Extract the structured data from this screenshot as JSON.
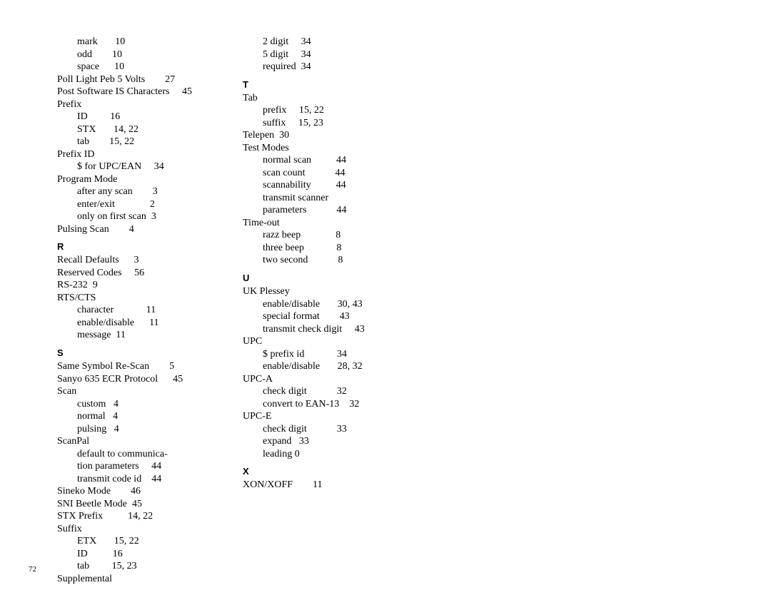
{
  "pageNumber": "72",
  "col1": [
    {
      "t": "line",
      "text": "        mark       10"
    },
    {
      "t": "line",
      "text": "        odd        10"
    },
    {
      "t": "line",
      "text": "        space      10"
    },
    {
      "t": "line",
      "text": "Poll Light Peb 5 Volts        27"
    },
    {
      "t": "line",
      "text": "Post Software IS Characters     45"
    },
    {
      "t": "line",
      "text": "Prefix"
    },
    {
      "t": "line",
      "text": "        ID         16"
    },
    {
      "t": "line",
      "text": "        STX       14, 22"
    },
    {
      "t": "line",
      "text": "        tab        15, 22"
    },
    {
      "t": "line",
      "text": "Prefix ID"
    },
    {
      "t": "line",
      "text": "        $ for UPC/EAN     34"
    },
    {
      "t": "line",
      "text": "Program Mode"
    },
    {
      "t": "line",
      "text": "        after any scan        3"
    },
    {
      "t": "line",
      "text": "        enter/exit              2"
    },
    {
      "t": "line",
      "text": "        only on first scan  3"
    },
    {
      "t": "line",
      "text": "Pulsing Scan        4"
    },
    {
      "t": "heading",
      "text": "R"
    },
    {
      "t": "line",
      "text": "Recall Defaults      3"
    },
    {
      "t": "line",
      "text": "Reserved Codes     56"
    },
    {
      "t": "line",
      "text": "RS-232  9"
    },
    {
      "t": "line",
      "text": "RTS/CTS"
    },
    {
      "t": "line",
      "text": "        character             11"
    },
    {
      "t": "line",
      "text": "        enable/disable      11"
    },
    {
      "t": "line",
      "text": "        message  11"
    },
    {
      "t": "heading",
      "text": "S"
    },
    {
      "t": "line",
      "text": "Same Symbol Re-Scan        5"
    },
    {
      "t": "line",
      "text": "Sanyo 635 ECR Protocol      45"
    },
    {
      "t": "line",
      "text": "Scan"
    },
    {
      "t": "line",
      "text": "        custom   4"
    },
    {
      "t": "line",
      "text": "        normal   4"
    },
    {
      "t": "line",
      "text": "        pulsing   4"
    },
    {
      "t": "line",
      "text": "ScanPal"
    },
    {
      "t": "line",
      "text": "        default to communica-"
    },
    {
      "t": "line",
      "text": "        tion parameters     44"
    },
    {
      "t": "line",
      "text": "        transmit code id    44"
    },
    {
      "t": "line",
      "text": "Sineko Mode        46"
    },
    {
      "t": "line",
      "text": "SNI Beetle Mode  45"
    },
    {
      "t": "line",
      "text": "STX Prefix          14, 22"
    },
    {
      "t": "line",
      "text": "Suffix"
    },
    {
      "t": "line",
      "text": "        ETX       15, 22"
    },
    {
      "t": "line",
      "text": "        ID          16"
    },
    {
      "t": "line",
      "text": "        tab         15, 23"
    },
    {
      "t": "line",
      "text": "Supplemental"
    }
  ],
  "col2": [
    {
      "t": "line",
      "text": "        2 digit     34"
    },
    {
      "t": "line",
      "text": "        5 digit     34"
    },
    {
      "t": "line",
      "text": "        required  34"
    },
    {
      "t": "heading",
      "text": "T"
    },
    {
      "t": "line",
      "text": "Tab"
    },
    {
      "t": "line",
      "text": "        prefix     15, 22"
    },
    {
      "t": "line",
      "text": "        suffix     15, 23"
    },
    {
      "t": "line",
      "text": "Telepen  30"
    },
    {
      "t": "line",
      "text": "Test Modes"
    },
    {
      "t": "line",
      "text": "        normal scan          44"
    },
    {
      "t": "line",
      "text": "        scan count            44"
    },
    {
      "t": "line",
      "text": "        scannability          44"
    },
    {
      "t": "line",
      "text": "        transmit scanner"
    },
    {
      "t": "line",
      "text": "        parameters            44"
    },
    {
      "t": "line",
      "text": "Time-out"
    },
    {
      "t": "line",
      "text": "        razz beep              8"
    },
    {
      "t": "line",
      "text": "        three beep             8"
    },
    {
      "t": "line",
      "text": "        two second            8"
    },
    {
      "t": "heading",
      "text": "U"
    },
    {
      "t": "line",
      "text": "UK Plessey"
    },
    {
      "t": "line",
      "text": "        enable/disable       30, 43"
    },
    {
      "t": "line",
      "text": "        special format        43"
    },
    {
      "t": "line",
      "text": "        transmit check digit     43"
    },
    {
      "t": "line",
      "text": "UPC"
    },
    {
      "t": "line",
      "text": "        $ prefix id             34"
    },
    {
      "t": "line",
      "text": "        enable/disable       28, 32"
    },
    {
      "t": "line",
      "text": "UPC-A"
    },
    {
      "t": "line",
      "text": "        check digit            32"
    },
    {
      "t": "line",
      "text": "        convert to EAN-13    32"
    },
    {
      "t": "line",
      "text": "UPC-E"
    },
    {
      "t": "line",
      "text": "        check digit            33"
    },
    {
      "t": "line",
      "text": "        expand   33"
    },
    {
      "t": "line",
      "text": "        leading 0"
    },
    {
      "t": "heading",
      "text": "X"
    },
    {
      "t": "line",
      "text": "XON/XOFF        11"
    }
  ]
}
